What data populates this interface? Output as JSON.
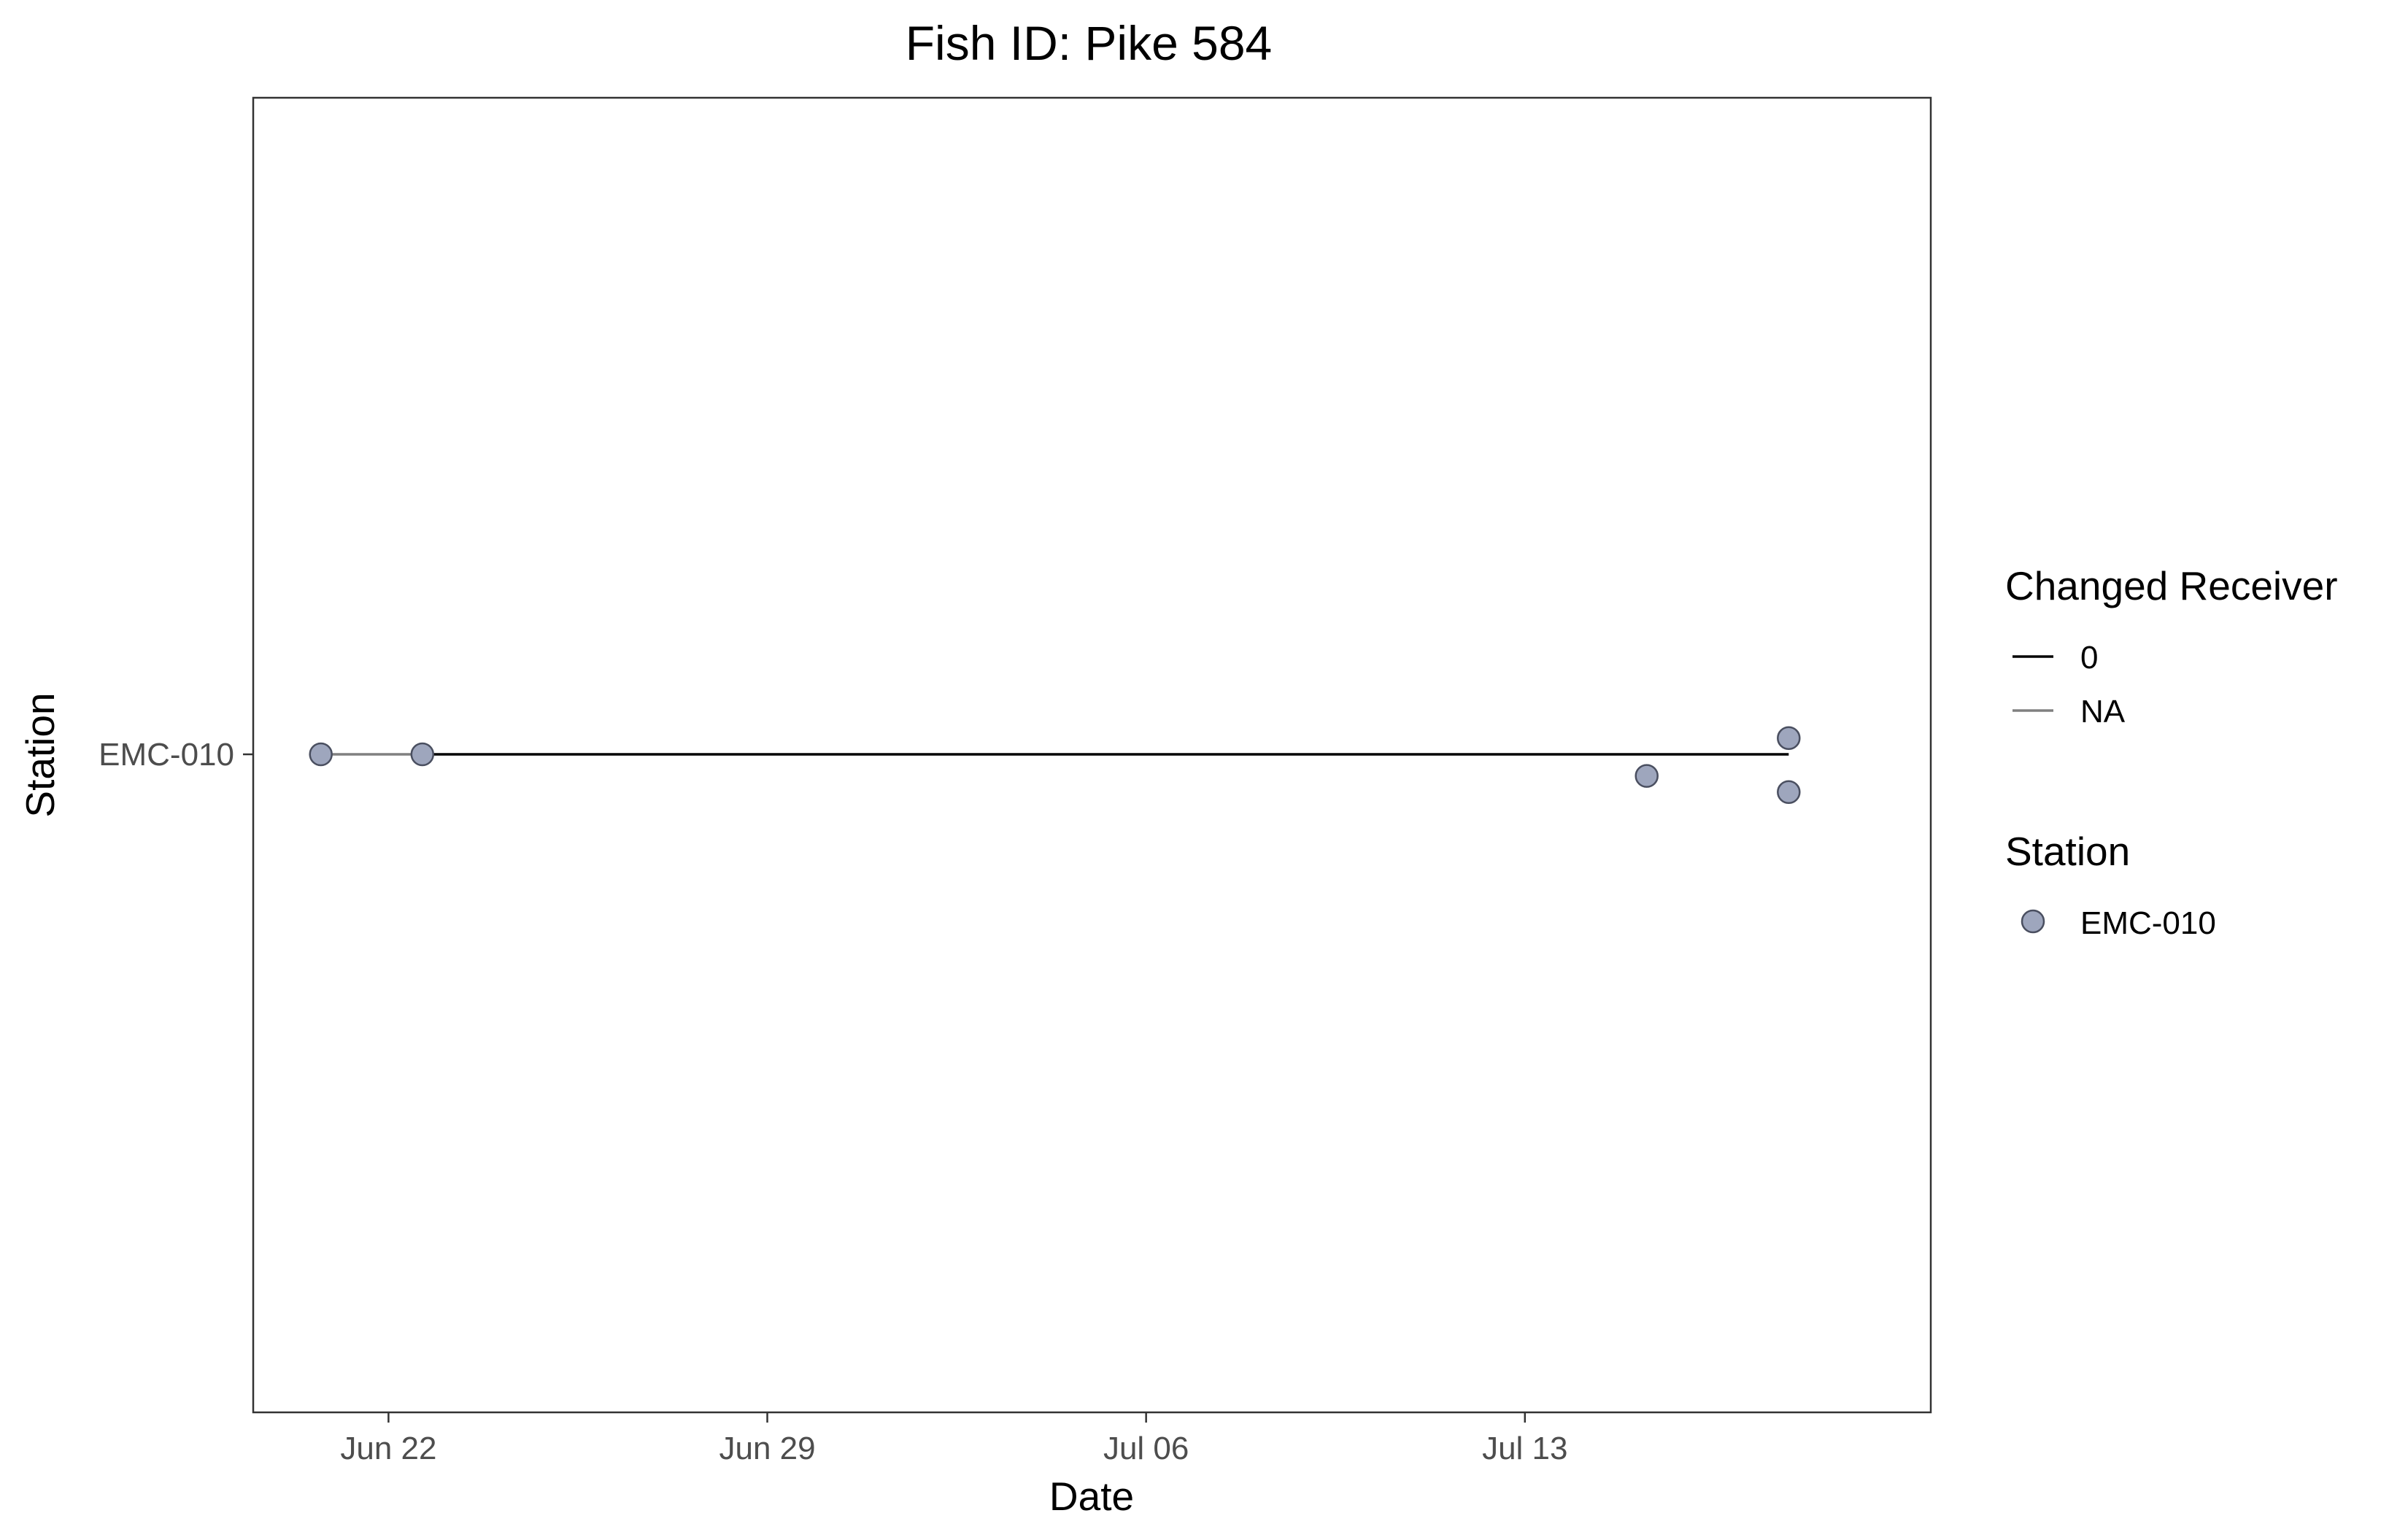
{
  "chart_data": {
    "type": "scatter",
    "title": "Fish ID: Pike 584",
    "xlabel": "Date",
    "ylabel": "Station",
    "x_axis": {
      "type": "date",
      "range": [
        "2021-06-19T12:00",
        "2021-07-20T12:00"
      ],
      "ticks": [
        {
          "date": "2021-06-22",
          "label": "Jun 22"
        },
        {
          "date": "2021-06-29",
          "label": "Jun 29"
        },
        {
          "date": "2021-07-06",
          "label": "Jul 06"
        },
        {
          "date": "2021-07-13",
          "label": "Jul 13"
        }
      ]
    },
    "y_axis": {
      "type": "categorical",
      "categories": [
        "EMC-010"
      ]
    },
    "grid": false,
    "lines": [
      {
        "changed_receiver": "NA",
        "color": "#808080",
        "points": [
          {
            "x": "2021-06-20T18:00",
            "y": "EMC-010"
          },
          {
            "x": "2021-06-22T15:00",
            "y": "EMC-010"
          }
        ]
      },
      {
        "changed_receiver": "0",
        "color": "#000000",
        "points": [
          {
            "x": "2021-06-22T15:00",
            "y": "EMC-010"
          },
          {
            "x": "2021-07-17T21:00",
            "y": "EMC-010"
          }
        ]
      }
    ],
    "points": [
      {
        "x": "2021-06-20T18:00",
        "station": "EMC-010",
        "y_jitter": 0.0
      },
      {
        "x": "2021-06-22T15:00",
        "station": "EMC-010",
        "y_jitter": 0.0
      },
      {
        "x": "2021-07-15T06:00",
        "station": "EMC-010",
        "y_jitter": -0.08
      },
      {
        "x": "2021-07-17T21:00",
        "station": "EMC-010",
        "y_jitter": 0.06
      },
      {
        "x": "2021-07-17T21:00",
        "station": "EMC-010",
        "y_jitter": -0.14
      }
    ],
    "point_fill": "#9ea6bd",
    "point_stroke": "#4a4f60",
    "legend": {
      "placement": "right",
      "groups": [
        {
          "title": "Changed Receiver",
          "kind": "line",
          "entries": [
            {
              "label": "0",
              "color": "#000000"
            },
            {
              "label": "NA",
              "color": "#808080"
            }
          ]
        },
        {
          "title": "Station",
          "kind": "point",
          "entries": [
            {
              "label": "EMC-010",
              "color": "#9ea6bd"
            }
          ]
        }
      ]
    }
  }
}
